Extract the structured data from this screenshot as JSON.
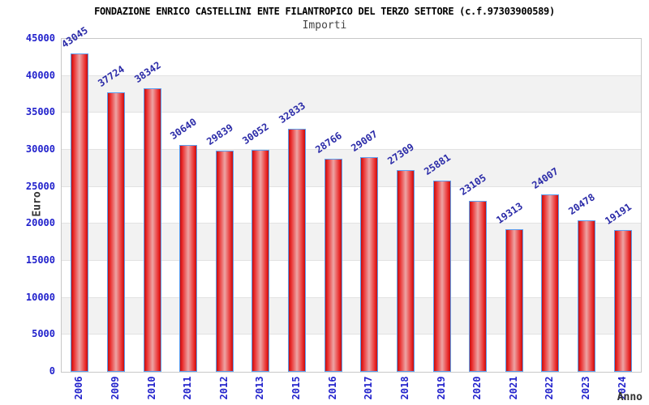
{
  "header": {
    "title": "FONDAZIONE ENRICO CASTELLINI ENTE FILANTROPICO DEL TERZO SETTORE (c.f.97303900589)",
    "subtitle": "Importi"
  },
  "chart_data": {
    "type": "bar",
    "title": "FONDAZIONE ENRICO CASTELLINI ENTE FILANTROPICO DEL TERZO SETTORE (c.f.97303900589)",
    "subtitle": "Importi",
    "categories": [
      "2006",
      "2009",
      "2010",
      "2011",
      "2012",
      "2013",
      "2015",
      "2016",
      "2017",
      "2018",
      "2019",
      "2020",
      "2021",
      "2022",
      "2023",
      "2024"
    ],
    "values": [
      43045,
      37724,
      38342,
      30640,
      29839,
      30052,
      32833,
      28766,
      29007,
      27309,
      25881,
      23105,
      19313,
      24007,
      20478,
      19191
    ],
    "xlabel": "Anno",
    "ylabel": "Euro",
    "ylim": [
      0,
      45000
    ],
    "ytick_step": 5000,
    "y_tick_labels": [
      "0",
      "5000",
      "10000",
      "15000",
      "20000",
      "25000",
      "30000",
      "35000",
      "40000",
      "45000"
    ],
    "legend": "none",
    "grid": "horizontal-bands-alternating",
    "colors": {
      "bar_fill": "#e01818",
      "bar_border": "#5c9ff0",
      "band_gray": "#f2f2f2",
      "axis_text": "#2222cc",
      "value_label": "#2b2ba8",
      "axis_title_text": "#333333",
      "title_text": "#000000"
    }
  }
}
